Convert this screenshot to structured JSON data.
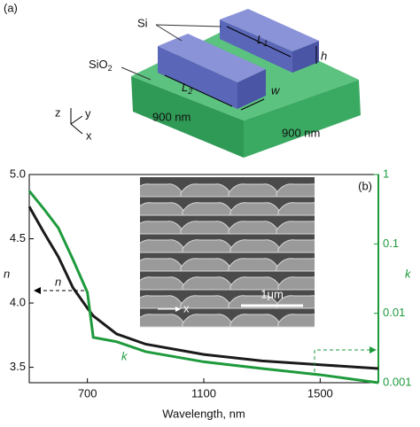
{
  "panel_a": {
    "label": "(a)",
    "si": "Si",
    "sio2": {
      "base": "SiO",
      "sub": "2"
    },
    "l1": {
      "base": "L",
      "sub": "1"
    },
    "l2": {
      "base": "L",
      "sub": "2"
    },
    "h": "h",
    "w": "w",
    "width_left": "900 nm",
    "width_right": "900 nm",
    "axis_z": "z",
    "axis_y": "y",
    "axis_x": "x"
  },
  "chart_data": {
    "type": "line",
    "panel_label": "(b)",
    "xlabel": "Wavelength, nm",
    "ylabel": "n",
    "y2label": "k",
    "x": [
      500,
      550,
      600,
      650,
      700,
      720,
      800,
      900,
      1100,
      1300,
      1500,
      1700
    ],
    "series": [
      {
        "name": "n",
        "color": "#1a1a1a",
        "values": [
          4.75,
          4.55,
          4.36,
          4.12,
          3.96,
          3.9,
          3.76,
          3.68,
          3.6,
          3.55,
          3.52,
          3.49
        ]
      },
      {
        "name": "k",
        "color": "#1e9a3c",
        "axis": "y2",
        "values": [
          0.58,
          0.32,
          0.17,
          0.06,
          0.02,
          0.0045,
          0.0039,
          0.0028,
          0.002,
          0.0016,
          0.0013,
          0.001
        ]
      }
    ],
    "xlim": [
      500,
      1700
    ],
    "xticks": [
      700,
      1100,
      1500
    ],
    "ylim": [
      3.38,
      5.0
    ],
    "yticks": [
      {
        "value": 5.0,
        "label": "5.0"
      },
      4.5,
      {
        "value": 4.0,
        "label": "4.0"
      },
      3.5
    ],
    "y2lim": [
      0.001,
      1
    ],
    "y2ticks": [
      1,
      0.1,
      0.01,
      0.001
    ],
    "y2log": true,
    "y2color": "#1e9a3c",
    "inset": {
      "scale_label": "1μm",
      "axis_label": "x"
    }
  }
}
